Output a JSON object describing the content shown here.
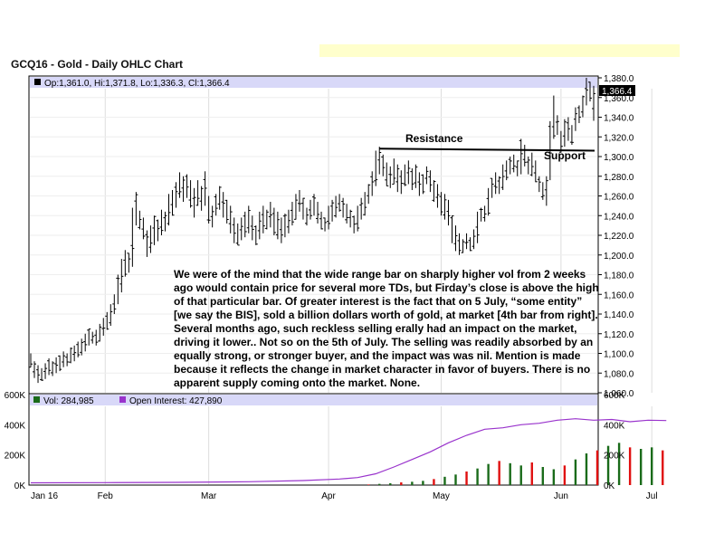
{
  "chart_data": {
    "type": "ohlc",
    "title": "GCQ16 - Gold - Daily OHLC Chart",
    "price_panel": {
      "legend": "Op:1,361.0, Hi:1,371.8, Lo:1,336.3, Cl:1,366.4",
      "last_price_label": "1,366.4",
      "ylim": [
        1060,
        1380
      ],
      "y_ticks": [
        "1,060.0",
        "1,080.0",
        "1,100.0",
        "1,120.0",
        "1,140.0",
        "1,160.0",
        "1,180.0",
        "1,200.0",
        "1,220.0",
        "1,240.0",
        "1,260.0",
        "1,280.0",
        "1,300.0",
        "1,320.0",
        "1,340.0",
        "1,360.0",
        "1,380.0"
      ],
      "y_tick_values": [
        1060,
        1080,
        1100,
        1120,
        1140,
        1160,
        1180,
        1200,
        1220,
        1240,
        1260,
        1280,
        1300,
        1320,
        1340,
        1360,
        1380
      ],
      "annotations": {
        "resistance": {
          "label": "Resistance",
          "level": 1308,
          "from_bar": 96,
          "to_bar": 155
        },
        "support": {
          "label": "Support",
          "level": 1306
        }
      },
      "bars": [
        [
          1100,
          1086
        ],
        [
          1092,
          1075
        ],
        [
          1088,
          1070
        ],
        [
          1085,
          1072
        ],
        [
          1090,
          1074
        ],
        [
          1095,
          1078
        ],
        [
          1092,
          1077
        ],
        [
          1096,
          1080
        ],
        [
          1098,
          1082
        ],
        [
          1102,
          1086
        ],
        [
          1100,
          1087
        ],
        [
          1106,
          1090
        ],
        [
          1108,
          1092
        ],
        [
          1112,
          1096
        ],
        [
          1115,
          1098
        ],
        [
          1120,
          1102
        ],
        [
          1125,
          1108
        ],
        [
          1122,
          1110
        ],
        [
          1124,
          1108
        ],
        [
          1130,
          1112
        ],
        [
          1136,
          1118
        ],
        [
          1142,
          1124
        ],
        [
          1150,
          1128
        ],
        [
          1160,
          1140
        ],
        [
          1180,
          1150
        ],
        [
          1196,
          1162
        ],
        [
          1205,
          1178
        ],
        [
          1202,
          1182
        ],
        [
          1248,
          1188
        ],
        [
          1264,
          1230
        ],
        [
          1245,
          1226
        ],
        [
          1238,
          1216
        ],
        [
          1225,
          1198
        ],
        [
          1230,
          1202
        ],
        [
          1240,
          1210
        ],
        [
          1236,
          1214
        ],
        [
          1246,
          1220
        ],
        [
          1244,
          1224
        ],
        [
          1262,
          1230
        ],
        [
          1266,
          1240
        ],
        [
          1274,
          1248
        ],
        [
          1284,
          1258
        ],
        [
          1280,
          1254
        ],
        [
          1282,
          1258
        ],
        [
          1276,
          1248
        ],
        [
          1268,
          1238
        ],
        [
          1276,
          1250
        ],
        [
          1270,
          1245
        ],
        [
          1285,
          1250
        ],
        [
          1260,
          1232
        ],
        [
          1250,
          1228
        ],
        [
          1262,
          1240
        ],
        [
          1270,
          1246
        ],
        [
          1264,
          1238
        ],
        [
          1256,
          1232
        ],
        [
          1250,
          1222
        ],
        [
          1238,
          1212
        ],
        [
          1232,
          1210
        ],
        [
          1238,
          1215
        ],
        [
          1244,
          1218
        ],
        [
          1250,
          1222
        ],
        [
          1240,
          1215
        ],
        [
          1230,
          1210
        ],
        [
          1244,
          1216
        ],
        [
          1250,
          1222
        ],
        [
          1246,
          1226
        ],
        [
          1254,
          1228
        ],
        [
          1248,
          1220
        ],
        [
          1244,
          1216
        ],
        [
          1238,
          1212
        ],
        [
          1242,
          1218
        ],
        [
          1246,
          1222
        ],
        [
          1254,
          1230
        ],
        [
          1262,
          1236
        ],
        [
          1266,
          1244
        ],
        [
          1258,
          1236
        ],
        [
          1248,
          1230
        ],
        [
          1256,
          1236
        ],
        [
          1262,
          1240
        ],
        [
          1254,
          1232
        ],
        [
          1244,
          1226
        ],
        [
          1238,
          1224
        ],
        [
          1250,
          1226
        ],
        [
          1256,
          1234
        ],
        [
          1260,
          1238
        ],
        [
          1262,
          1244
        ],
        [
          1258,
          1238
        ],
        [
          1252,
          1232
        ],
        [
          1246,
          1228
        ],
        [
          1240,
          1222
        ],
        [
          1250,
          1224
        ],
        [
          1258,
          1236
        ],
        [
          1264,
          1240
        ],
        [
          1272,
          1252
        ],
        [
          1285,
          1260
        ],
        [
          1306,
          1270
        ],
        [
          1310,
          1282
        ],
        [
          1302,
          1280
        ],
        [
          1294,
          1270
        ],
        [
          1290,
          1268
        ],
        [
          1298,
          1272
        ],
        [
          1292,
          1264
        ],
        [
          1286,
          1262
        ],
        [
          1292,
          1270
        ],
        [
          1296,
          1272
        ],
        [
          1288,
          1266
        ],
        [
          1292,
          1268
        ],
        [
          1284,
          1260
        ],
        [
          1282,
          1262
        ],
        [
          1290,
          1272
        ],
        [
          1286,
          1264
        ],
        [
          1276,
          1254
        ],
        [
          1272,
          1248
        ],
        [
          1264,
          1240
        ],
        [
          1262,
          1236
        ],
        [
          1256,
          1230
        ],
        [
          1240,
          1212
        ],
        [
          1230,
          1204
        ],
        [
          1222,
          1200
        ],
        [
          1216,
          1202
        ],
        [
          1222,
          1206
        ],
        [
          1218,
          1204
        ],
        [
          1226,
          1206
        ],
        [
          1244,
          1212
        ],
        [
          1248,
          1234
        ],
        [
          1250,
          1234
        ],
        [
          1268,
          1240
        ],
        [
          1278,
          1258
        ],
        [
          1284,
          1262
        ],
        [
          1280,
          1262
        ],
        [
          1292,
          1266
        ],
        [
          1296,
          1276
        ],
        [
          1300,
          1282
        ],
        [
          1302,
          1284
        ],
        [
          1296,
          1280
        ],
        [
          1318,
          1282
        ],
        [
          1312,
          1290
        ],
        [
          1300,
          1282
        ],
        [
          1304,
          1280
        ],
        [
          1296,
          1274
        ],
        [
          1280,
          1264
        ],
        [
          1274,
          1256
        ],
        [
          1280,
          1250
        ],
        [
          1336,
          1276
        ],
        [
          1362,
          1318
        ],
        [
          1342,
          1322
        ],
        [
          1326,
          1304
        ],
        [
          1338,
          1310
        ],
        [
          1340,
          1316
        ],
        [
          1332,
          1312
        ],
        [
          1350,
          1326
        ],
        [
          1352,
          1334
        ],
        [
          1362,
          1340
        ],
        [
          1380,
          1352
        ],
        [
          1376,
          1356
        ],
        [
          1371.8,
          1336.3
        ]
      ]
    },
    "volume_panel": {
      "legend_vol": "Vol: 284,985",
      "legend_oi": "Open Interest: 427,890",
      "vol_color_up": "#1a6b1a",
      "vol_color_down": "#e01010",
      "oi_color": "#9933cc",
      "left_ticks": [
        "0K",
        "200K",
        "400K",
        "600K"
      ],
      "left_tick_values": [
        0,
        200,
        400,
        600
      ],
      "right_ticks": [
        "0K",
        "200K",
        "400K",
        "600K"
      ],
      "right_tick_values": [
        0,
        200,
        400,
        600
      ],
      "volume_series_x": [
        93,
        96,
        99,
        102,
        105,
        108,
        111,
        114,
        117,
        120,
        123,
        126,
        129,
        132,
        135,
        138,
        141,
        144,
        147,
        150,
        153,
        156,
        159,
        162,
        165,
        168,
        171,
        174
      ],
      "volume": [
        4,
        8,
        12,
        18,
        22,
        28,
        40,
        55,
        70,
        90,
        110,
        140,
        160,
        145,
        130,
        150,
        120,
        105,
        130,
        170,
        210,
        230,
        260,
        280,
        250,
        240,
        250,
        230
      ],
      "oi_x": [
        0,
        20,
        40,
        60,
        75,
        85,
        90,
        95,
        100,
        105,
        110,
        115,
        120,
        125,
        130,
        135,
        140,
        145,
        150,
        155,
        160,
        165,
        170,
        175
      ],
      "open_interest": [
        15,
        16,
        18,
        22,
        30,
        40,
        50,
        75,
        120,
        170,
        220,
        280,
        330,
        370,
        380,
        400,
        410,
        430,
        440,
        430,
        435,
        420,
        430,
        428
      ]
    },
    "x_labels": [
      "Jan 16",
      "Feb",
      "Mar",
      "Apr",
      "May",
      "Jun",
      "Jul"
    ],
    "x_label_positions": [
      0,
      20.5,
      49,
      82,
      113,
      146,
      171
    ],
    "commentary": "We were of the mind that the wide range bar on sharply higher vol from 2 weeks ago would contain price for several more TDs, but Firday’s close is above the high of that particular bar.  Of greater interest is the fact that on 5 July, “some entity” [we say the BIS], sold a billion dollars worth of gold, at market [4th bar from right].  Several months ago, such reckless selling erally had an impact on the market, driving it lower..  Not so on the 5th of July.  The selling was readily absorbed by an equally strong, or stronger buyer, and the impact was was nil.  Mention is made because it reflects the change in market character in favor of buyers.  There is no apparent supply coming onto the market.  None."
  }
}
